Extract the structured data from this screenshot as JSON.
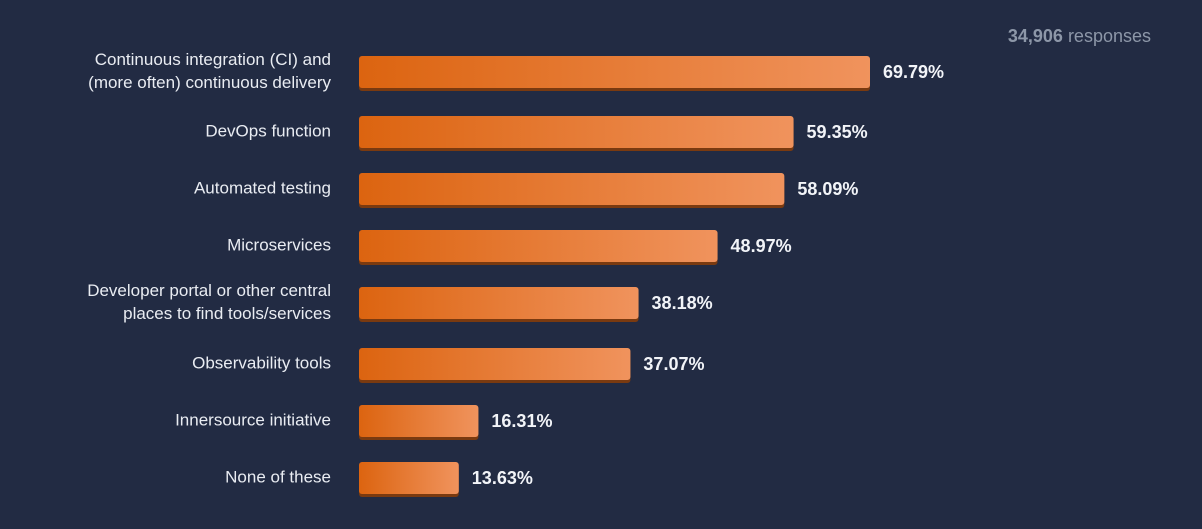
{
  "responses": {
    "count": "34,906",
    "label": "responses"
  },
  "colors": {
    "background": "#222b43",
    "bar_start": "#dc6410",
    "bar_end": "#f0935d",
    "bar_shadow": "#7a3a10"
  },
  "chart_data": {
    "type": "bar",
    "orientation": "horizontal",
    "categories": [
      [
        "Continuous integration (CI) and",
        "(more often) continuous delivery"
      ],
      [
        "DevOps function"
      ],
      [
        "Automated testing"
      ],
      [
        "Microservices"
      ],
      [
        "Developer portal or other central",
        "places to find tools/services"
      ],
      [
        "Observability tools"
      ],
      [
        "Innersource initiative"
      ],
      [
        "None of these"
      ]
    ],
    "values": [
      69.79,
      59.35,
      58.09,
      48.97,
      38.18,
      37.07,
      16.31,
      13.63
    ],
    "value_labels": [
      "69.79%",
      "59.35%",
      "58.09%",
      "48.97%",
      "38.18%",
      "37.07%",
      "16.31%",
      "13.63%"
    ],
    "unit": "%",
    "xlim": [
      0,
      100
    ],
    "grid": false,
    "legend": "none"
  }
}
